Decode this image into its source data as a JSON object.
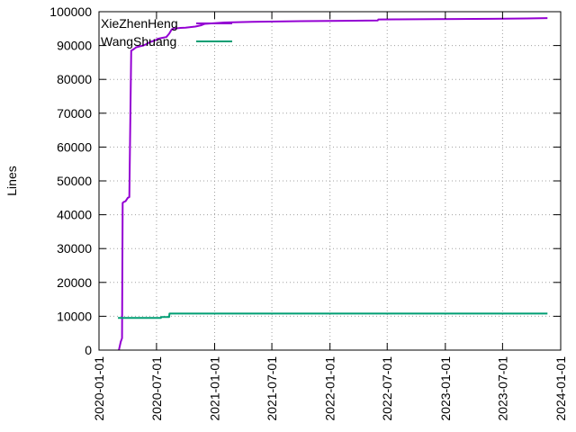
{
  "chart_data": {
    "type": "line",
    "title": "",
    "xlabel": "",
    "ylabel": "Lines",
    "xlim": [
      "2020-01-01",
      "2024-01-01"
    ],
    "ylim": [
      0,
      100000
    ],
    "x_ticks": [
      "2020-01-01",
      "2020-07-01",
      "2021-01-01",
      "2021-07-01",
      "2022-01-01",
      "2022-07-01",
      "2023-01-01",
      "2023-07-01",
      "2024-01-01"
    ],
    "y_ticks": [
      0,
      10000,
      20000,
      30000,
      40000,
      50000,
      60000,
      70000,
      80000,
      90000,
      100000
    ],
    "y_tick_labels": [
      "0",
      "10000",
      "20000",
      "30000",
      "40000",
      "50000",
      "60000",
      "70000",
      "80000",
      "90000",
      "100000"
    ],
    "grid": "dotted, both axes",
    "legend": "top-left",
    "series": [
      {
        "name": "XieZhenHeng",
        "color": "#9400d3",
        "x": [
          "2020-03-04",
          "2020-03-10",
          "2020-03-12",
          "2020-03-14",
          "2020-03-16",
          "2020-03-20",
          "2020-03-25",
          "2020-04-01",
          "2020-04-06",
          "2020-04-12",
          "2020-04-18",
          "2020-04-28",
          "2020-05-10",
          "2020-05-20",
          "2020-06-01",
          "2020-06-10",
          "2020-06-25",
          "2020-07-05",
          "2020-07-20",
          "2020-08-01",
          "2020-08-10",
          "2020-08-18",
          "2020-08-25",
          "2020-09-15",
          "2020-10-01",
          "2020-11-01",
          "2020-11-20",
          "2020-12-01",
          "2021-01-01",
          "2021-02-01",
          "2021-05-01",
          "2021-10-01",
          "2022-01-01",
          "2022-06-01",
          "2022-06-03",
          "2022-12-01",
          "2023-06-01",
          "2023-09-15",
          "2023-11-20"
        ],
        "values": [
          0,
          2500,
          3000,
          3500,
          43500,
          43800,
          44000,
          45000,
          45200,
          88500,
          88800,
          89500,
          89800,
          90000,
          90500,
          91000,
          91500,
          92000,
          92300,
          92500,
          93500,
          94800,
          95000,
          95200,
          95300,
          95600,
          96000,
          96400,
          96600,
          96800,
          97000,
          97200,
          97300,
          97400,
          97700,
          97800,
          97900,
          98000,
          98100
        ]
      },
      {
        "name": "WangShuang",
        "color": "#009e73",
        "x": [
          "2020-03-01",
          "2020-07-15",
          "2020-07-16",
          "2020-08-10",
          "2020-08-11",
          "2023-11-20"
        ],
        "values": [
          9500,
          9500,
          9800,
          9800,
          10800,
          10800
        ]
      }
    ]
  }
}
